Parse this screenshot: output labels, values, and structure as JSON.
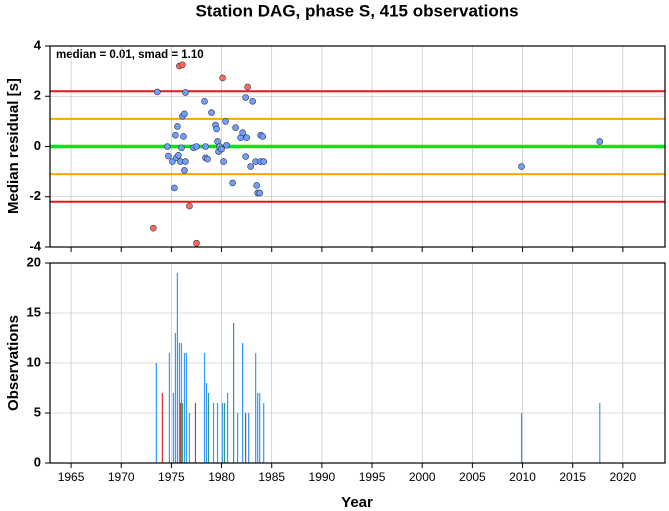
{
  "chart_data": [
    {
      "type": "scatter",
      "title": "Station DAG, phase S, 415 observations",
      "ylabel": "Median residual [s]",
      "annotation": "median = 0.01, smad = 1.10",
      "xlim": [
        1962.9,
        2024.2
      ],
      "xticks": [
        1965,
        1970,
        1975,
        1980,
        1985,
        1990,
        1995,
        2000,
        2005,
        2010,
        2015,
        2020
      ],
      "ylim": [
        -4,
        4
      ],
      "yticks": [
        -4,
        -2,
        0,
        2,
        4
      ],
      "grid": true,
      "reference_lines": [
        {
          "value": 2.2,
          "color": "#e8141e"
        },
        {
          "value": 1.1,
          "color": "#ffa500"
        },
        {
          "value": 0,
          "color": "#00e61e"
        },
        {
          "value": -1.1,
          "color": "#ffa500"
        },
        {
          "value": -2.2,
          "color": "#e8141e"
        }
      ],
      "series": [
        {
          "color": "#6fa0ff",
          "x": [
            1973.6,
            1974.6,
            1974.7,
            1975.1,
            1975.3,
            1975.5,
            1975.4,
            1975.6,
            1975.7,
            1975.9,
            1976.0,
            1976.1,
            1976.2,
            1976.3,
            1976.4,
            1976.4,
            1976.3,
            1977.2,
            1977.5,
            1978.3,
            1978.4,
            1978.6,
            1978.4,
            1979.0,
            1979.4,
            1979.5,
            1979.6,
            1979.7,
            1979.8,
            1980.0,
            1980.2,
            1980.4,
            1980.5,
            1981.1,
            1981.4,
            1981.9,
            1982.1,
            1982.4,
            1982.4,
            1982.5,
            1982.9,
            1983.1,
            1983.4,
            1983.5,
            1983.6,
            1983.8,
            1983.9,
            1983.9,
            1984.1,
            1984.2,
            2009.9,
            2017.7
          ],
          "values": [
            2.17,
            0.0,
            -0.38,
            -0.6,
            -1.65,
            -0.45,
            0.45,
            0.8,
            -0.35,
            -0.6,
            -0.05,
            1.2,
            0.4,
            1.3,
            -0.6,
            2.15,
            -0.95,
            -0.05,
            0.0,
            1.8,
            -0.45,
            -0.5,
            0.0,
            1.35,
            0.85,
            0.7,
            0.2,
            -0.2,
            0.0,
            -0.1,
            -0.6,
            1.0,
            0.05,
            -1.45,
            0.75,
            0.35,
            0.55,
            -0.4,
            1.95,
            0.35,
            -0.8,
            1.8,
            -0.6,
            -1.55,
            -1.85,
            -1.85,
            -0.6,
            0.45,
            0.4,
            -0.6,
            -0.8,
            0.2
          ]
        },
        {
          "color": "#ff6b5b",
          "x": [
            1973.2,
            1975.8,
            1976.1,
            1976.8,
            1977.5,
            1980.1,
            1982.6
          ],
          "values": [
            -3.25,
            3.2,
            3.25,
            -2.37,
            -3.85,
            2.73,
            2.37
          ]
        }
      ]
    },
    {
      "type": "bar",
      "ylabel": "Observations",
      "xlabel": "Year",
      "xlim": [
        1962.9,
        2024.2
      ],
      "xticks": [
        1965,
        1970,
        1975,
        1980,
        1985,
        1990,
        1995,
        2000,
        2005,
        2010,
        2015,
        2020
      ],
      "ylim": [
        0,
        20
      ],
      "yticks": [
        0,
        5,
        10,
        15,
        20
      ],
      "grid": true,
      "x": [
        1973.5,
        1974.1,
        1974.8,
        1975.2,
        1975.4,
        1975.6,
        1975.8,
        1975.9,
        1976.0,
        1976.1,
        1976.3,
        1976.5,
        1976.8,
        1977.4,
        1978.3,
        1978.5,
        1978.7,
        1979.2,
        1979.6,
        1980.1,
        1980.3,
        1980.6,
        1981.2,
        1981.6,
        1982.1,
        1982.4,
        1982.7,
        1983.4,
        1983.6,
        1983.8,
        1984.2,
        2009.9,
        2017.7
      ],
      "values": [
        10,
        7,
        11,
        7,
        13,
        19,
        12,
        6,
        12,
        6,
        11,
        11,
        5,
        6,
        11,
        8,
        7,
        6,
        6,
        6,
        6,
        7,
        14,
        5,
        12,
        5,
        5,
        11,
        7,
        7,
        6,
        5,
        6
      ],
      "colors": [
        "#3399ff",
        "#e0302a",
        "#3399ff",
        "#3399ff",
        "#3399ff",
        "#3399ff",
        "#3399ff",
        "#e0302a",
        "#3399ff",
        "#2e9e6b",
        "#3399ff",
        "#3399ff",
        "#3399ff",
        "#e0302a",
        "#3399ff",
        "#3399ff",
        "#2e9e6b",
        "#3399ff",
        "#3399ff",
        "#3399ff",
        "#2e9e6b",
        "#3399ff",
        "#2e9e6b",
        "#3399ff",
        "#3399ff",
        "#e0302a",
        "#3399ff",
        "#3399ff",
        "#3399ff",
        "#3399ff",
        "#3399ff",
        "#3399ff",
        "#3399ff"
      ]
    }
  ]
}
